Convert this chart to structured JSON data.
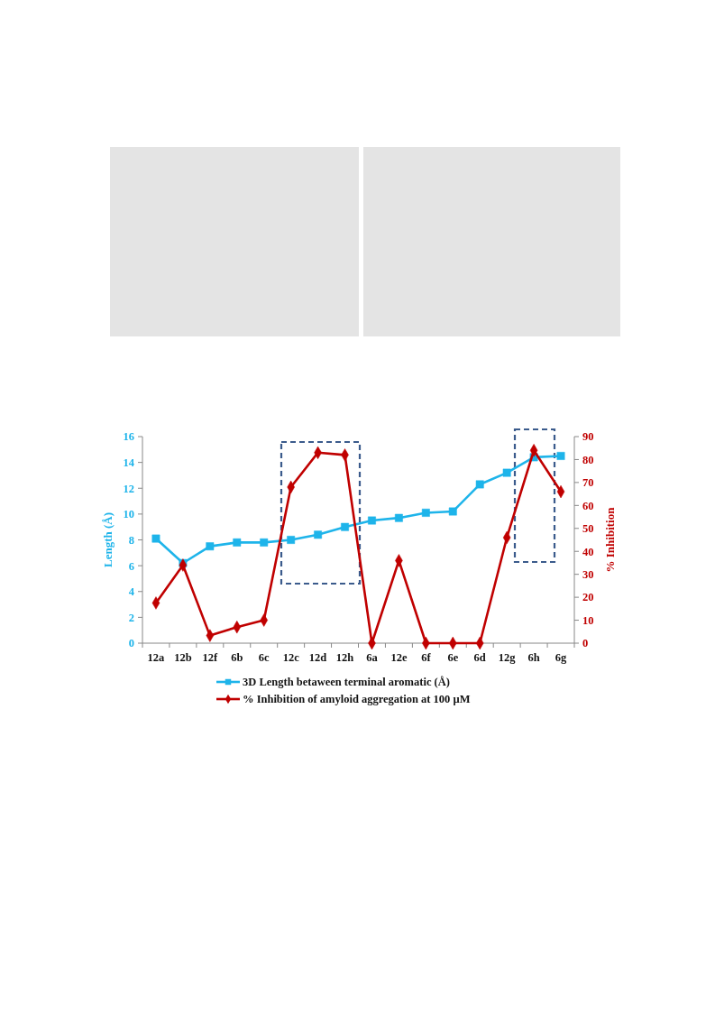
{
  "chart_data": {
    "type": "line",
    "categories": [
      "12a",
      "12b",
      "12f",
      "6b",
      "6c",
      "12c",
      "12d",
      "12h",
      "6a",
      "12e",
      "6f",
      "6e",
      "6d",
      "12g",
      "6h",
      "6g"
    ],
    "series": [
      {
        "name": "3D Length betaween terminal aromatic (Å)",
        "color": "#1eb4ea",
        "marker": "square",
        "values": [
          8.1,
          6.2,
          7.5,
          7.8,
          7.8,
          8.0,
          8.4,
          9.0,
          9.5,
          9.7,
          10.1,
          10.2,
          12.3,
          13.2,
          14.4,
          14.5
        ]
      },
      {
        "name": "% Inhibition of amyloid aggregation at 100 µM",
        "color": "#c00000",
        "marker": "diamond",
        "axis": "y2",
        "values": [
          17.5,
          34,
          3.3,
          7,
          10,
          68,
          83,
          82,
          0,
          36,
          0,
          0,
          0,
          46,
          84,
          66
        ]
      }
    ],
    "ylabel": "Length (Å)",
    "y2label": "% Inhibition",
    "ylim": [
      0,
      16
    ],
    "yticks": [
      0,
      2,
      4,
      6,
      8,
      10,
      12,
      14,
      16
    ],
    "y2lim": [
      0,
      90
    ],
    "y2ticks": [
      0,
      10,
      20,
      30,
      40,
      50,
      60,
      70,
      80,
      90
    ],
    "legend": "bottom",
    "line_style": "solid"
  }
}
